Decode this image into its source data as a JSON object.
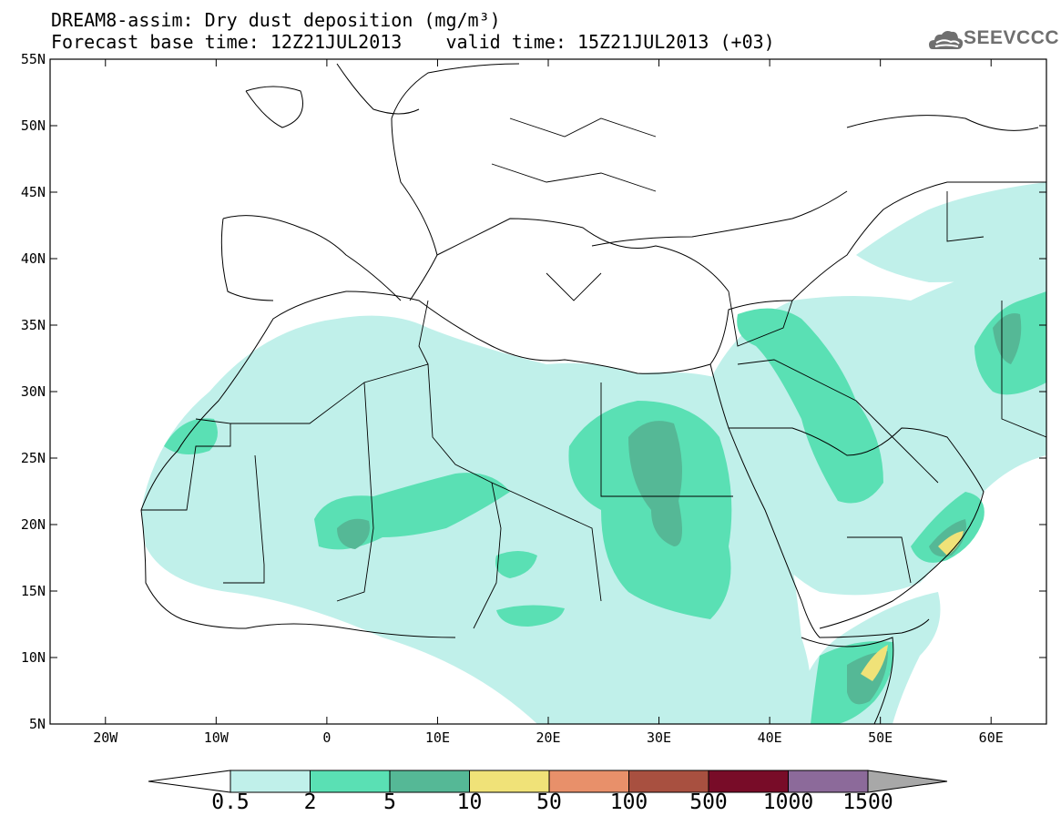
{
  "header": {
    "title": "DREAM8-assim: Dry dust deposition (mg/m³)",
    "base_time": "Forecast base time: 12Z21JUL2013",
    "valid_time": "valid time: 15Z21JUL2013 (+03)",
    "logo_text": "SEEVCCC"
  },
  "map": {
    "lon_range": [
      -25,
      65
    ],
    "lat_range": [
      5,
      55
    ],
    "lat_ticks": [
      "55N",
      "50N",
      "45N",
      "40N",
      "35N",
      "30N",
      "25N",
      "20N",
      "15N",
      "10N",
      "5N"
    ],
    "lon_ticks": [
      "20W",
      "10W",
      "0",
      "10E",
      "20E",
      "30E",
      "40E",
      "50E",
      "60E"
    ]
  },
  "colorbar": {
    "labels": [
      "0.5",
      "2",
      "5",
      "10",
      "50",
      "100",
      "500",
      "1000",
      "1500"
    ],
    "colors": [
      "#c0f0ea",
      "#5ae0b4",
      "#55b896",
      "#f0e278",
      "#e8906a",
      "#a85040",
      "#780c28",
      "#8c6a9a",
      "#a8a8a8"
    ]
  }
}
